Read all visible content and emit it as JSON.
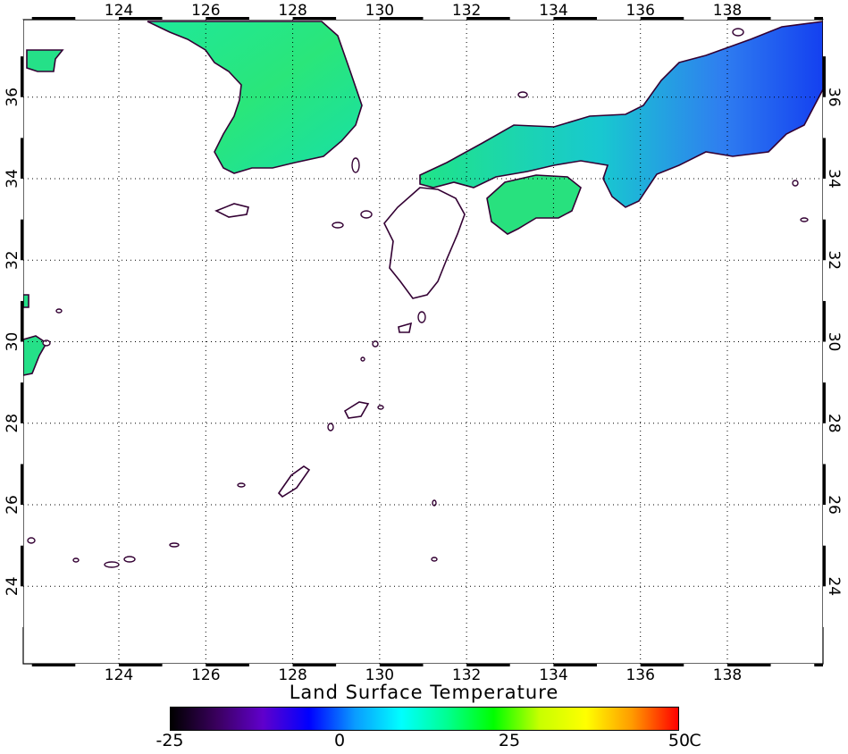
{
  "map": {
    "title": "Land Surface Temperature",
    "longitude_ticks": [
      "124",
      "126",
      "128",
      "130",
      "132",
      "134",
      "136",
      "138"
    ],
    "latitude_ticks": [
      "24",
      "26",
      "28",
      "30",
      "32",
      "34",
      "36"
    ],
    "longitude_range": [
      121.8,
      140.2
    ],
    "latitude_range": [
      22.1,
      37.9
    ],
    "grid": true,
    "coastline_color": "#330033",
    "land_colors": {
      "warm": "#22e68c",
      "mid": "#16e0b0",
      "cool": "#2f8af0",
      "cold": "#1540f0"
    }
  },
  "colorbar": {
    "tick_labels": [
      "-25",
      "0",
      "25",
      "50"
    ],
    "unit": "C",
    "min": -25,
    "max": 50,
    "gradient": [
      "#000000",
      "#3a005e",
      "#6000cc",
      "#0000ff",
      "#0a9cff",
      "#00ffff",
      "#00ff90",
      "#00ff00",
      "#c8ff00",
      "#ffff00",
      "#ff9a00",
      "#ff0000"
    ]
  }
}
